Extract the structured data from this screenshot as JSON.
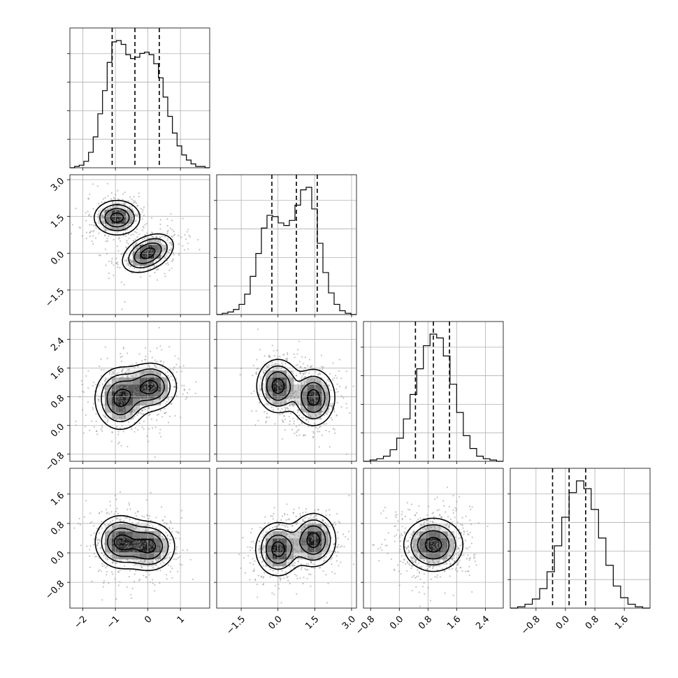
{
  "chart_data": {
    "type": "corner",
    "title": "",
    "parameters": [
      {
        "index": 0,
        "label": "",
        "range": [
          -2.4,
          1.9
        ],
        "ticks": [
          -2,
          -1,
          0,
          1
        ],
        "tick_labels": [
          "−2",
          "−1",
          "0",
          "1"
        ],
        "quantiles": [
          -1.1,
          -0.4,
          0.35
        ]
      },
      {
        "index": 1,
        "label": "",
        "range": [
          -2.5,
          3.2
        ],
        "ticks": [
          -1.5,
          0.0,
          1.5,
          3.0
        ],
        "tick_labels": [
          "−1.5",
          "0.0",
          "1.5",
          "3.0"
        ],
        "quantiles": [
          -0.25,
          0.75,
          1.6
        ]
      },
      {
        "index": 2,
        "label": "",
        "range": [
          -1.0,
          2.9
        ],
        "ticks": [
          -0.8,
          0.0,
          0.8,
          1.6,
          2.4
        ],
        "tick_labels": [
          "−0.8",
          "0.0",
          "0.8",
          "1.6",
          "2.4"
        ],
        "quantiles": [
          0.45,
          0.95,
          1.4
        ]
      },
      {
        "index": 3,
        "label": "",
        "range": [
          -1.5,
          2.3
        ],
        "ticks": [
          -0.8,
          0.0,
          0.8,
          1.6
        ],
        "tick_labels": [
          "−0.8",
          "0.0",
          "0.8",
          "1.6"
        ],
        "quantiles": [
          -0.35,
          0.1,
          0.55
        ]
      }
    ],
    "histograms": [
      {
        "param": 0,
        "bin_range": [
          -2.4,
          1.9
        ],
        "counts": [
          0,
          1,
          2,
          5,
          12,
          24,
          42,
          60,
          82,
          98,
          99,
          96,
          88,
          85,
          86,
          89,
          90,
          88,
          81,
          70,
          55,
          40,
          27,
          17,
          10,
          6,
          3,
          1,
          1,
          0
        ]
      },
      {
        "param": 1,
        "bin_range": [
          -2.5,
          3.2
        ],
        "counts": [
          0,
          1,
          2,
          4,
          8,
          16,
          30,
          48,
          68,
          78,
          77,
          72,
          70,
          74,
          86,
          98,
          100,
          83,
          56,
          33,
          17,
          8,
          3,
          1,
          0
        ]
      },
      {
        "param": 2,
        "bin_range": [
          -1.0,
          2.9
        ],
        "counts": [
          0,
          1,
          2,
          4,
          9,
          18,
          33,
          52,
          72,
          90,
          99,
          96,
          82,
          60,
          38,
          20,
          10,
          4,
          2,
          1,
          0
        ]
      },
      {
        "param": 3,
        "bin_range": [
          -1.5,
          2.3
        ],
        "counts": [
          0,
          1,
          3,
          7,
          15,
          28,
          48,
          70,
          89,
          98,
          92,
          76,
          54,
          33,
          17,
          8,
          3,
          1,
          0
        ]
      }
    ],
    "pairs": [
      {
        "x": 0,
        "y": 1,
        "modes": [
          {
            "mx": -0.95,
            "my": 1.45,
            "sx": 0.34,
            "sy": 0.34,
            "rho": 0.0,
            "w": 0.5
          },
          {
            "mx": 0.0,
            "my": 0.0,
            "sx": 0.38,
            "sy": 0.38,
            "rho": 0.4,
            "w": 0.5
          }
        ]
      },
      {
        "x": 0,
        "y": 2,
        "modes": [
          {
            "mx": -0.85,
            "my": 0.75,
            "sx": 0.38,
            "sy": 0.42,
            "rho": 0.0,
            "w": 0.5
          },
          {
            "mx": 0.1,
            "my": 1.08,
            "sx": 0.38,
            "sy": 0.32,
            "rho": 0.0,
            "w": 0.5
          }
        ]
      },
      {
        "x": 1,
        "y": 2,
        "modes": [
          {
            "mx": 0.0,
            "my": 1.1,
            "sx": 0.42,
            "sy": 0.36,
            "rho": 0.0,
            "w": 0.5
          },
          {
            "mx": 1.45,
            "my": 0.78,
            "sx": 0.42,
            "sy": 0.38,
            "rho": 0.0,
            "w": 0.5
          }
        ]
      },
      {
        "x": 0,
        "y": 3,
        "modes": [
          {
            "mx": -0.85,
            "my": 0.3,
            "sx": 0.38,
            "sy": 0.35,
            "rho": 0.0,
            "w": 0.5
          },
          {
            "mx": 0.05,
            "my": 0.18,
            "sx": 0.38,
            "sy": 0.32,
            "rho": 0.0,
            "w": 0.5
          }
        ]
      },
      {
        "x": 1,
        "y": 3,
        "modes": [
          {
            "mx": 0.0,
            "my": 0.1,
            "sx": 0.44,
            "sy": 0.35,
            "rho": 0.0,
            "w": 0.5
          },
          {
            "mx": 1.45,
            "my": 0.35,
            "sx": 0.44,
            "sy": 0.35,
            "rho": 0.0,
            "w": 0.5
          }
        ]
      },
      {
        "x": 2,
        "y": 3,
        "modes": [
          {
            "mx": 0.95,
            "my": 0.22,
            "sx": 0.4,
            "sy": 0.35,
            "rho": 0.0,
            "w": 1.0
          }
        ]
      }
    ],
    "contour_levels": [
      0.12,
      0.3,
      0.55,
      0.85
    ],
    "grid": true
  }
}
